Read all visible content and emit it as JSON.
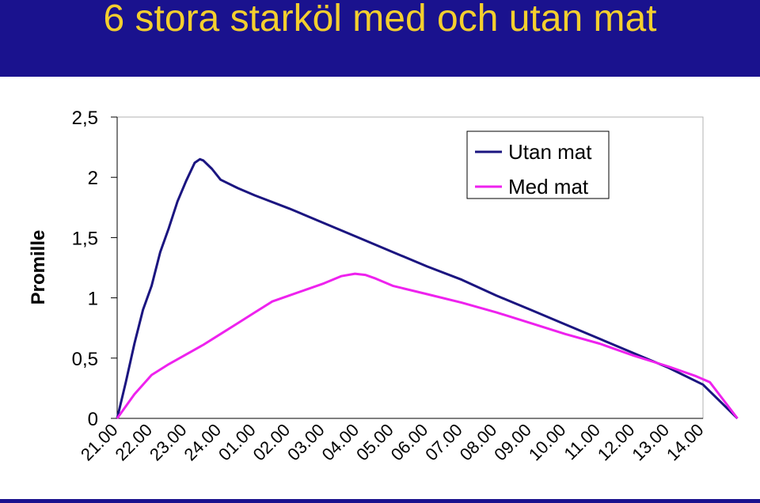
{
  "slide": {
    "title": "6 stora starköl med och utan mat",
    "colors": {
      "background_bar": "#1a128e",
      "title_text": "#f4cf2e"
    }
  },
  "chart_data": {
    "type": "line",
    "title": "",
    "xlabel": "",
    "ylabel": "Promille",
    "ylim": [
      0,
      2.5
    ],
    "yticks": [
      "0",
      "0,5",
      "1",
      "1,5",
      "2",
      "2,5"
    ],
    "ytick_values": [
      0,
      0.5,
      1,
      1.5,
      2,
      2.5
    ],
    "categories": [
      "21.00",
      "22.00",
      "23.00",
      "24.00",
      "01.00",
      "02.00",
      "03.00",
      "04.00",
      "05.00",
      "06.00",
      "07.00",
      "08.00",
      "09.00",
      "10.00",
      "11.00",
      "12.00",
      "13.00",
      "14.00"
    ],
    "grid": false,
    "legend_position": "top-right",
    "series": [
      {
        "name": "Utan mat",
        "color": "#1b1580",
        "points": [
          [
            0,
            0
          ],
          [
            0.25,
            0.3
          ],
          [
            0.5,
            0.62
          ],
          [
            0.75,
            0.9
          ],
          [
            1,
            1.1
          ],
          [
            1.25,
            1.38
          ],
          [
            1.5,
            1.58
          ],
          [
            1.75,
            1.8
          ],
          [
            2,
            1.97
          ],
          [
            2.25,
            2.12
          ],
          [
            2.4,
            2.15
          ],
          [
            2.5,
            2.14
          ],
          [
            2.75,
            2.07
          ],
          [
            3,
            1.98
          ],
          [
            3.5,
            1.91
          ],
          [
            4,
            1.85
          ],
          [
            5,
            1.74
          ],
          [
            6,
            1.62
          ],
          [
            7,
            1.5
          ],
          [
            8,
            1.38
          ],
          [
            9,
            1.26
          ],
          [
            10,
            1.15
          ],
          [
            11,
            1.02
          ],
          [
            12,
            0.9
          ],
          [
            13,
            0.78
          ],
          [
            14,
            0.66
          ],
          [
            15,
            0.54
          ],
          [
            16,
            0.42
          ],
          [
            17,
            0.28
          ],
          [
            17.5,
            0.14
          ],
          [
            18,
            0
          ]
        ]
      },
      {
        "name": "Med mat",
        "color": "#ee22ee",
        "points": [
          [
            0,
            0
          ],
          [
            0.5,
            0.2
          ],
          [
            1,
            0.36
          ],
          [
            1.5,
            0.45
          ],
          [
            2,
            0.53
          ],
          [
            2.5,
            0.61
          ],
          [
            3,
            0.7
          ],
          [
            3.5,
            0.79
          ],
          [
            4,
            0.88
          ],
          [
            4.5,
            0.97
          ],
          [
            5,
            1.02
          ],
          [
            5.5,
            1.07
          ],
          [
            6,
            1.12
          ],
          [
            6.5,
            1.18
          ],
          [
            6.9,
            1.2
          ],
          [
            7.2,
            1.19
          ],
          [
            7.5,
            1.16
          ],
          [
            8,
            1.1
          ],
          [
            9,
            1.03
          ],
          [
            10,
            0.96
          ],
          [
            11,
            0.88
          ],
          [
            12,
            0.79
          ],
          [
            13,
            0.7
          ],
          [
            14,
            0.62
          ],
          [
            15,
            0.52
          ],
          [
            16,
            0.43
          ],
          [
            16.8,
            0.35
          ],
          [
            17.2,
            0.3
          ],
          [
            17.6,
            0.15
          ],
          [
            18,
            0
          ]
        ]
      }
    ]
  }
}
